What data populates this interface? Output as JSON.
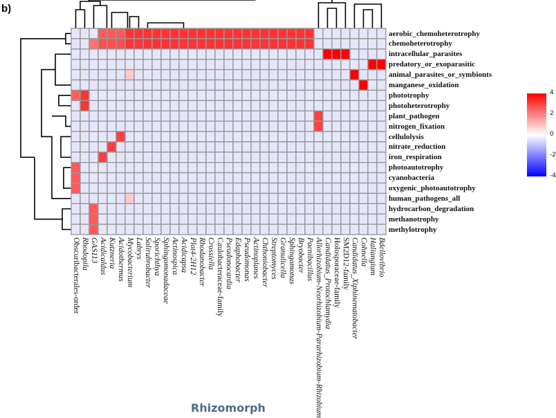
{
  "panel_label": "b)",
  "chart_data": {
    "type": "heatmap",
    "title": "Rhizomorph",
    "rows": [
      "aerobic_chemoheterotrophy",
      "chemoheterotrophy",
      "intracellular_parasites",
      "predatory_or_exoparasitic",
      "animal_parasites_or_symbionts",
      "manganese_oxidation",
      "phototrophy",
      "photoheterotrophy",
      "plant_pathogen",
      "nitrogen_fixation",
      "cellulolysis",
      "nitrate_reduction",
      "iron_respiration",
      "photoautotrophy",
      "cyanobacteria",
      "oxygenic_photoautotrophy",
      "human_pathogens_all",
      "hydrocarbon_degradation",
      "methanotrophy",
      "methylotrophy"
    ],
    "columns": [
      "Obscuribacterales-order",
      "Rhodopila",
      "GAS113",
      "Acidicaldus",
      "Kutzneria",
      "Acidothermus",
      "Mycobacterium",
      "Labrys",
      "Solirubrobacter",
      "Sporichthya",
      "Sphingomonadaceae",
      "Actinospica",
      "Acidicapsa",
      "Plot4-2H12",
      "Rhodanobacter",
      "Crossiella",
      "Caulobacteraceae-family",
      "Pseudonocardia",
      "Edaphobacter",
      "Pseudomonas",
      "Actinoplanes",
      "Chthoniobacter",
      "Streptomyces",
      "Granulicella",
      "Sphingomonas",
      "Bryobacter",
      "Paenibacillus",
      "Allorhizobium-Neorhizobium-Pararhizobium-Rhizobium",
      "Candidatus_Protochlamydia",
      "Holosporaceae-family",
      "SM2D12-family",
      "Candidatus_Xiphinematobacter",
      "Cohnella",
      "Haliangium",
      "Bdellovibrio"
    ],
    "values": [
      [
        -0.2,
        -0.2,
        -0.3,
        2.6,
        2.6,
        2.6,
        3.2,
        3.2,
        3.2,
        3.2,
        3.2,
        3.2,
        3.2,
        3.2,
        3.2,
        3.2,
        3.2,
        3.2,
        3.2,
        3.2,
        3.2,
        3.2,
        3.2,
        3.2,
        3.2,
        3.2,
        3.2,
        -0.3,
        -0.3,
        -0.3,
        -0.3,
        -0.3,
        -0.3,
        -0.3,
        -0.3
      ],
      [
        -0.3,
        -0.2,
        2.2,
        2.8,
        2.8,
        2.8,
        3.2,
        3.2,
        3.2,
        3.2,
        3.2,
        3.2,
        3.2,
        3.2,
        3.2,
        3.2,
        3.2,
        3.2,
        3.2,
        3.2,
        3.2,
        3.2,
        3.2,
        3.2,
        3.2,
        3.2,
        3.2,
        -0.3,
        -0.3,
        -0.3,
        -0.3,
        -0.3,
        -0.3,
        -0.3,
        -0.3
      ],
      [
        -0.3,
        -0.3,
        -0.3,
        -0.3,
        -0.3,
        -0.3,
        -0.3,
        -0.3,
        -0.3,
        -0.3,
        -0.3,
        -0.3,
        -0.3,
        -0.3,
        -0.3,
        -0.3,
        -0.3,
        -0.3,
        -0.3,
        -0.3,
        -0.3,
        -0.3,
        -0.3,
        -0.3,
        -0.3,
        -0.3,
        -0.3,
        -0.3,
        4,
        4,
        4,
        -0.3,
        -0.3,
        -0.3,
        -0.3
      ],
      [
        -0.3,
        -0.3,
        -0.3,
        -0.3,
        -0.3,
        -0.3,
        -0.3,
        -0.3,
        -0.3,
        -0.3,
        -0.3,
        -0.3,
        -0.3,
        -0.3,
        -0.3,
        -0.3,
        -0.3,
        -0.3,
        -0.3,
        -0.3,
        -0.3,
        -0.3,
        -0.3,
        -0.3,
        -0.3,
        -0.3,
        -0.3,
        -0.3,
        -0.3,
        -0.3,
        -0.3,
        -0.3,
        -0.3,
        4,
        4
      ],
      [
        -0.3,
        -0.3,
        -0.3,
        -0.3,
        -0.3,
        -0.3,
        0.8,
        -0.3,
        -0.3,
        -0.3,
        -0.3,
        -0.3,
        -0.3,
        -0.3,
        -0.3,
        -0.3,
        -0.3,
        -0.3,
        -0.3,
        -0.3,
        -0.3,
        -0.3,
        -0.3,
        -0.3,
        -0.3,
        -0.3,
        -0.3,
        -0.3,
        -0.3,
        -0.3,
        -0.3,
        4,
        -0.3,
        -0.3,
        -0.3
      ],
      [
        -0.3,
        -0.3,
        -0.3,
        -0.3,
        -0.3,
        -0.3,
        -0.3,
        -0.3,
        -0.3,
        -0.3,
        -0.3,
        -0.3,
        -0.3,
        -0.3,
        -0.3,
        -0.3,
        -0.3,
        -0.3,
        -0.3,
        -0.3,
        -0.3,
        -0.3,
        -0.3,
        -0.3,
        -0.3,
        -0.3,
        -0.3,
        -0.3,
        -0.3,
        -0.3,
        -0.3,
        -0.3,
        4,
        -0.3,
        -0.3
      ],
      [
        2.5,
        3.2,
        -0.3,
        -0.3,
        -0.3,
        -0.3,
        -0.3,
        -0.3,
        -0.3,
        -0.3,
        -0.3,
        -0.3,
        -0.3,
        -0.3,
        -0.3,
        -0.3,
        -0.3,
        -0.3,
        -0.3,
        -0.3,
        -0.3,
        -0.3,
        -0.3,
        -0.3,
        -0.3,
        -0.3,
        -0.3,
        -0.3,
        -0.3,
        -0.3,
        -0.3,
        -0.3,
        -0.3,
        -0.3,
        -0.3
      ],
      [
        -0.3,
        3.2,
        -0.3,
        -0.3,
        -0.3,
        -0.3,
        -0.3,
        -0.3,
        -0.3,
        -0.3,
        -0.3,
        -0.3,
        -0.3,
        -0.3,
        -0.3,
        -0.3,
        -0.3,
        -0.3,
        -0.3,
        -0.3,
        -0.3,
        -0.3,
        -0.3,
        -0.3,
        -0.3,
        -0.3,
        -0.3,
        -0.3,
        -0.3,
        -0.3,
        -0.3,
        -0.3,
        -0.3,
        -0.3,
        -0.3
      ],
      [
        -0.3,
        -0.3,
        -0.3,
        -0.3,
        -0.3,
        -0.3,
        -0.3,
        -0.3,
        -0.3,
        -0.3,
        -0.3,
        -0.3,
        -0.3,
        -0.3,
        -0.3,
        -0.3,
        -0.3,
        -0.3,
        -0.3,
        -0.3,
        -0.3,
        -0.3,
        -0.3,
        -0.3,
        -0.3,
        -0.3,
        -0.3,
        3.0,
        -0.3,
        -0.3,
        -0.3,
        -0.3,
        -0.3,
        -0.3,
        -0.3
      ],
      [
        -0.3,
        -0.3,
        -0.3,
        -0.3,
        -0.3,
        -0.3,
        -0.3,
        -0.3,
        -0.3,
        -0.3,
        -0.3,
        -0.3,
        -0.3,
        -0.3,
        -0.3,
        -0.3,
        -0.3,
        -0.3,
        -0.3,
        -0.3,
        -0.3,
        -0.3,
        -0.3,
        -0.3,
        -0.3,
        -0.3,
        -0.3,
        3.0,
        -0.3,
        -0.3,
        -0.3,
        -0.3,
        -0.3,
        -0.3,
        -0.3
      ],
      [
        -0.3,
        -0.3,
        -0.3,
        -0.3,
        -0.3,
        3.0,
        -0.3,
        -0.3,
        -0.3,
        -0.3,
        -0.3,
        -0.3,
        -0.3,
        -0.3,
        -0.3,
        -0.3,
        -0.3,
        -0.3,
        -0.3,
        -0.3,
        -0.3,
        -0.3,
        -0.3,
        -0.3,
        -0.3,
        -0.3,
        -0.3,
        -0.3,
        -0.3,
        -0.3,
        -0.3,
        -0.3,
        -0.3,
        -0.3,
        -0.3
      ],
      [
        -0.3,
        -0.3,
        -0.3,
        -0.3,
        3.0,
        -0.3,
        -0.3,
        -0.3,
        -0.3,
        -0.3,
        -0.3,
        -0.3,
        -0.3,
        -0.3,
        -0.3,
        -0.3,
        -0.3,
        -0.3,
        -0.3,
        -0.3,
        -0.3,
        -0.3,
        -0.3,
        -0.3,
        -0.3,
        -0.3,
        -0.3,
        -0.3,
        -0.3,
        -0.3,
        -0.3,
        -0.3,
        -0.3,
        -0.3,
        -0.3
      ],
      [
        -0.3,
        -0.3,
        -0.3,
        3.0,
        -0.3,
        -0.3,
        -0.3,
        -0.3,
        -0.3,
        -0.3,
        -0.3,
        -0.3,
        -0.3,
        -0.3,
        -0.3,
        -0.3,
        -0.3,
        -0.3,
        -0.3,
        -0.3,
        -0.3,
        -0.3,
        -0.3,
        -0.3,
        -0.3,
        -0.3,
        -0.3,
        -0.3,
        -0.3,
        -0.3,
        -0.3,
        -0.3,
        -0.3,
        -0.3,
        -0.3
      ],
      [
        2.6,
        -0.3,
        -0.3,
        -0.3,
        -0.3,
        -0.3,
        -0.3,
        -0.3,
        -0.3,
        -0.3,
        -0.3,
        -0.3,
        -0.3,
        -0.3,
        -0.3,
        -0.3,
        -0.3,
        -0.3,
        -0.3,
        -0.3,
        -0.3,
        -0.3,
        -0.3,
        -0.3,
        -0.3,
        -0.3,
        -0.3,
        -0.3,
        -0.3,
        -0.3,
        -0.3,
        -0.3,
        -0.3,
        -0.3,
        -0.3
      ],
      [
        2.6,
        -0.3,
        -0.3,
        -0.3,
        -0.3,
        -0.3,
        -0.3,
        -0.3,
        -0.3,
        -0.3,
        -0.3,
        -0.3,
        -0.3,
        -0.3,
        -0.3,
        -0.3,
        -0.3,
        -0.3,
        -0.3,
        -0.3,
        -0.3,
        -0.3,
        -0.3,
        -0.3,
        -0.3,
        -0.3,
        -0.3,
        -0.3,
        -0.3,
        -0.3,
        -0.3,
        -0.3,
        -0.3,
        -0.3,
        -0.3
      ],
      [
        2.6,
        -0.3,
        -0.3,
        -0.3,
        -0.3,
        -0.3,
        -0.3,
        -0.3,
        -0.3,
        -0.3,
        -0.3,
        -0.3,
        -0.3,
        -0.3,
        -0.3,
        -0.3,
        -0.3,
        -0.3,
        -0.3,
        -0.3,
        -0.3,
        -0.3,
        -0.3,
        -0.3,
        -0.3,
        -0.3,
        -0.3,
        -0.3,
        -0.3,
        -0.3,
        -0.3,
        -0.3,
        -0.3,
        -0.3,
        -0.3
      ],
      [
        -0.3,
        -0.3,
        -0.3,
        -0.3,
        -0.3,
        -0.3,
        0.8,
        -0.3,
        -0.3,
        -0.3,
        -0.3,
        -0.3,
        -0.3,
        -0.3,
        -0.3,
        -0.3,
        -0.3,
        -0.3,
        -0.3,
        -0.3,
        -0.3,
        -0.3,
        -0.3,
        -0.3,
        -0.3,
        -0.3,
        -0.3,
        -0.3,
        -0.3,
        -0.3,
        -0.3,
        -0.3,
        -0.3,
        -0.3,
        -0.3
      ],
      [
        -0.3,
        -0.3,
        2.6,
        -0.3,
        -0.3,
        -0.3,
        -0.3,
        -0.3,
        -0.3,
        -0.3,
        -0.3,
        -0.3,
        -0.3,
        -0.3,
        -0.3,
        -0.3,
        -0.3,
        -0.3,
        -0.3,
        -0.3,
        -0.3,
        -0.3,
        -0.3,
        -0.3,
        -0.3,
        -0.3,
        -0.3,
        -0.3,
        -0.3,
        -0.3,
        -0.3,
        -0.3,
        -0.3,
        -0.3,
        -0.3
      ],
      [
        -0.3,
        -0.3,
        2.6,
        -0.3,
        -0.3,
        -0.3,
        -0.3,
        -0.3,
        -0.3,
        -0.3,
        -0.3,
        -0.3,
        -0.3,
        -0.3,
        -0.3,
        -0.3,
        -0.3,
        -0.3,
        -0.3,
        -0.3,
        -0.3,
        -0.3,
        -0.3,
        -0.3,
        -0.3,
        -0.3,
        -0.3,
        -0.3,
        -0.3,
        -0.3,
        -0.3,
        -0.3,
        -0.3,
        -0.3,
        -0.3
      ],
      [
        -0.3,
        -0.3,
        2.6,
        -0.3,
        -0.3,
        -0.3,
        -0.3,
        -0.3,
        -0.3,
        -0.3,
        -0.3,
        -0.3,
        -0.3,
        -0.3,
        -0.3,
        -0.3,
        -0.3,
        -0.3,
        -0.3,
        -0.3,
        -0.3,
        -0.3,
        -0.3,
        -0.3,
        -0.3,
        -0.3,
        -0.3,
        -0.3,
        -0.3,
        -0.3,
        -0.3,
        -0.3,
        -0.3,
        -0.3,
        -0.3
      ]
    ],
    "color_scale": {
      "min": -4,
      "max": 4,
      "low_color": "#0000ff",
      "mid_color": "#ffffff",
      "high_color": "#ff0000",
      "ticks": [
        "4",
        "2",
        "0",
        "-2",
        "-4"
      ]
    },
    "dendrograms": [
      "rows-left",
      "columns-top"
    ],
    "legend": "right"
  }
}
